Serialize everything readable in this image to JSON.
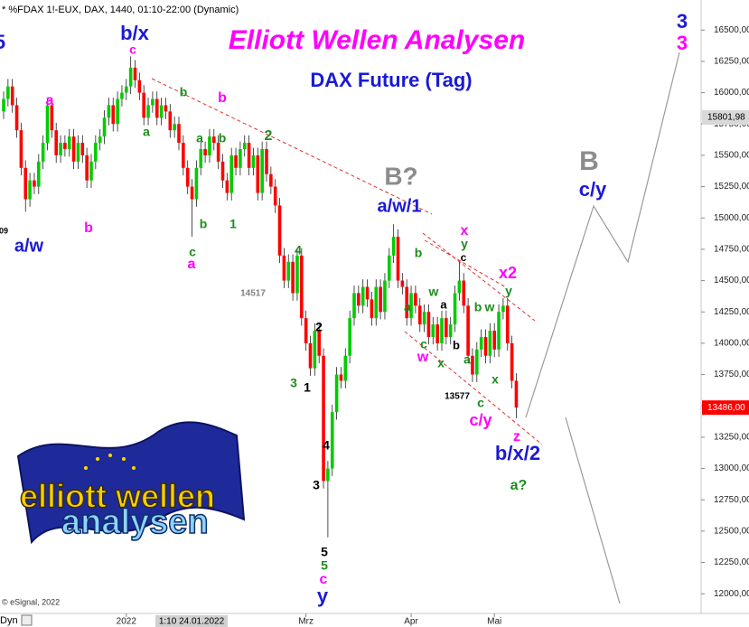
{
  "chart_data": {
    "type": "candlestick",
    "header": "* %FDAX 1!-EUX, DAX, 1440, 01:10-22:00 (Dynamic)",
    "title": "Elliott Wellen Analysen",
    "subtitle": "DAX Future (Tag)",
    "open": [
      15850,
      15950,
      16050,
      15900,
      15700,
      15400,
      15150,
      15300,
      15250,
      15450,
      15600,
      15900,
      15700,
      15500,
      15600,
      15550,
      15650,
      15450,
      15600,
      15500,
      15300,
      15450,
      15600,
      15650,
      15800,
      15900,
      15750,
      15950,
      16000,
      16050,
      16200,
      16100,
      16000,
      15800,
      15900,
      15950,
      15800,
      15900,
      15850,
      15700,
      15750,
      15600,
      15400,
      15250,
      15150,
      15400,
      15550,
      15500,
      15650,
      15600,
      15450,
      15300,
      15200,
      15500,
      15400,
      15550,
      15600,
      15400,
      15500,
      15200,
      15550,
      15350,
      15250,
      15100,
      14700,
      14500,
      14650,
      14400,
      14700,
      14200,
      14000,
      13800,
      14100,
      13900,
      12900,
      13000,
      13450,
      13750,
      13700,
      13900,
      14200,
      14400,
      14300,
      14450,
      14350,
      14200,
      14450,
      14250,
      14500,
      14700,
      14850,
      14500,
      14450,
      14200,
      14400,
      14300,
      14150,
      14250,
      14050,
      14150,
      14000,
      14200,
      14050,
      14150,
      14400,
      14500,
      14300,
      13900,
      13750,
      13950,
      14050,
      13900,
      14100,
      13950,
      14250,
      14300,
      14000,
      13700
    ],
    "high": [
      16010,
      16110,
      16110,
      15960,
      15760,
      15460,
      15360,
      15360,
      15510,
      15660,
      15960,
      15960,
      15760,
      15660,
      15660,
      15710,
      15710,
      15660,
      15660,
      15560,
      15510,
      15660,
      15710,
      15860,
      15960,
      15960,
      16010,
      16060,
      16110,
      16290,
      16260,
      16160,
      16060,
      15960,
      16010,
      16010,
      15960,
      15960,
      15910,
      15810,
      15810,
      15660,
      15460,
      15310,
      15460,
      15610,
      15610,
      15710,
      15710,
      15660,
      15510,
      15360,
      15560,
      15560,
      15610,
      15660,
      15660,
      15560,
      15560,
      15610,
      15610,
      15410,
      15310,
      15160,
      14760,
      14710,
      14710,
      14760,
      14760,
      14260,
      14060,
      14160,
      14160,
      13960,
      13060,
      13510,
      13810,
      13810,
      13960,
      14260,
      14460,
      14460,
      14510,
      14510,
      14410,
      14510,
      14510,
      14560,
      14760,
      14950,
      14910,
      14560,
      14510,
      14460,
      14460,
      14360,
      14310,
      14310,
      14210,
      14210,
      14260,
      14260,
      14210,
      14460,
      14650,
      14560,
      14360,
      13960,
      14010,
      14110,
      14110,
      14160,
      14160,
      14310,
      14360,
      14360,
      14060,
      13760
    ],
    "low": [
      15790,
      15890,
      15840,
      15640,
      15340,
      15050,
      15090,
      15190,
      15190,
      15390,
      15540,
      15640,
      15440,
      15440,
      15490,
      15490,
      15390,
      15390,
      15440,
      15240,
      15240,
      15390,
      15540,
      15590,
      15740,
      15690,
      15690,
      15890,
      15940,
      15990,
      16040,
      15940,
      15740,
      15740,
      15840,
      15740,
      15740,
      15790,
      15640,
      15640,
      15540,
      15340,
      15190,
      14850,
      15090,
      15340,
      15440,
      15440,
      15540,
      15390,
      15240,
      15140,
      15140,
      15340,
      15340,
      15490,
      15340,
      15340,
      15140,
      15140,
      15290,
      15190,
      15040,
      14640,
      14440,
      14440,
      14340,
      14340,
      14140,
      13940,
      13740,
      13740,
      13840,
      12840,
      12450,
      12940,
      13390,
      13640,
      13640,
      13840,
      14140,
      14240,
      14240,
      14290,
      14140,
      14140,
      14190,
      14190,
      14440,
      14640,
      14440,
      14390,
      14140,
      14140,
      14240,
      14090,
      14090,
      13990,
      13990,
      13940,
      13940,
      13990,
      13990,
      14090,
      14340,
      14240,
      13840,
      13690,
      13690,
      13890,
      13840,
      13840,
      13890,
      13890,
      14190,
      13940,
      13640,
      13400
    ],
    "close": [
      15950,
      16050,
      15900,
      15700,
      15400,
      15150,
      15300,
      15250,
      15450,
      15600,
      15900,
      15700,
      15500,
      15600,
      15550,
      15650,
      15450,
      15600,
      15500,
      15300,
      15450,
      15600,
      15650,
      15800,
      15900,
      15750,
      15950,
      16000,
      16050,
      16200,
      16100,
      16000,
      15800,
      15900,
      15950,
      15800,
      15900,
      15850,
      15700,
      15750,
      15600,
      15400,
      15250,
      15150,
      15400,
      15550,
      15500,
      15650,
      15600,
      15450,
      15300,
      15200,
      15500,
      15400,
      15550,
      15600,
      15400,
      15500,
      15200,
      15550,
      15350,
      15250,
      15100,
      14700,
      14500,
      14650,
      14400,
      14700,
      14200,
      14000,
      13800,
      14100,
      13900,
      12900,
      13000,
      13450,
      13750,
      13700,
      13900,
      14200,
      14400,
      14300,
      14450,
      14350,
      14200,
      14450,
      14250,
      14500,
      14700,
      14850,
      14500,
      14450,
      14200,
      14400,
      14300,
      14150,
      14250,
      14050,
      14150,
      14000,
      14200,
      14050,
      14150,
      14400,
      14500,
      14300,
      13900,
      13750,
      13950,
      14050,
      13900,
      14100,
      13950,
      14250,
      14300,
      14000,
      13700,
      13486
    ],
    "up_color": "#00cc00",
    "down_color": "#ff0000",
    "ylim": [
      11850,
      16740
    ],
    "yticks": [
      {
        "value": 12000,
        "label": "12000,00"
      },
      {
        "value": 12250,
        "label": "12250,00"
      },
      {
        "value": 12500,
        "label": "12500,00"
      },
      {
        "value": 12750,
        "label": "12750,00"
      },
      {
        "value": 13000,
        "label": "13000,00"
      },
      {
        "value": 13250,
        "label": "13250,00"
      },
      {
        "value": 13500,
        "label": "13500,00"
      },
      {
        "value": 13750,
        "label": "13750,00"
      },
      {
        "value": 14000,
        "label": "14000,00"
      },
      {
        "value": 14250,
        "label": "14250,00"
      },
      {
        "value": 14500,
        "label": "14500,00"
      },
      {
        "value": 14750,
        "label": "14750,00"
      },
      {
        "value": 15000,
        "label": "15000,00"
      },
      {
        "value": 15250,
        "label": "15250,00"
      },
      {
        "value": 15500,
        "label": "15500,00"
      },
      {
        "value": 15750,
        "label": "15750,00"
      },
      {
        "value": 16000,
        "label": "16000,00"
      },
      {
        "value": 16250,
        "label": "16250,00"
      },
      {
        "value": 16500,
        "label": "16500,00"
      }
    ],
    "xticks": [
      {
        "value": 28,
        "label": "2022"
      },
      {
        "value": 69,
        "label": "Mrz"
      },
      {
        "value": 93,
        "label": "Apr"
      },
      {
        "value": 112,
        "label": "Mai"
      }
    ],
    "crosshair_label": "1:10 24.01.2022",
    "price_markers": [
      {
        "value": 15801.98,
        "label": "15801,98",
        "color": "#d9d9d9"
      },
      {
        "value": 13486,
        "label": "13486,00",
        "color": "#ff0000"
      }
    ],
    "annotations": [
      {
        "text": "5",
        "color": "#1a1ad6"
      },
      {
        "text": "b/x",
        "color": "#1a1ad6"
      },
      {
        "text": "c",
        "color": "#ff00ff"
      },
      {
        "text": "a",
        "color": "#ff00ff"
      },
      {
        "text": "b",
        "color": "#1e8c1e"
      },
      {
        "text": "b",
        "color": "#ff00ff"
      },
      {
        "text": "a",
        "color": "#1e8c1e"
      },
      {
        "text": "a",
        "color": "#1e8c1e"
      },
      {
        "text": "b",
        "color": "#1e8c1e"
      },
      {
        "text": "2",
        "color": "#1e8c1e"
      },
      {
        "text": "09",
        "color": "#000000"
      },
      {
        "text": "a/w",
        "color": "#1a1ad6"
      },
      {
        "text": "b",
        "color": "#ff00ff"
      },
      {
        "text": "b",
        "color": "#1e8c1e"
      },
      {
        "text": "1",
        "color": "#1e8c1e"
      },
      {
        "text": "c",
        "color": "#1e8c1e"
      },
      {
        "text": "a",
        "color": "#ff00ff"
      },
      {
        "text": "4",
        "color": "#1e8c1e"
      },
      {
        "text": "14517",
        "color": "#808080"
      },
      {
        "text": "2",
        "color": "#000000"
      },
      {
        "text": "3",
        "color": "#1e8c1e"
      },
      {
        "text": "1",
        "color": "#000000"
      },
      {
        "text": "4",
        "color": "#000000"
      },
      {
        "text": "3",
        "color": "#000000"
      },
      {
        "text": "5",
        "color": "#000000"
      },
      {
        "text": "5",
        "color": "#1e8c1e"
      },
      {
        "text": "c",
        "color": "#ff00ff"
      },
      {
        "text": "y",
        "color": "#1a1ad6"
      },
      {
        "text": "B?",
        "color": "#8c8c8c"
      },
      {
        "text": "a/w/1",
        "color": "#1a1ad6"
      },
      {
        "text": "x",
        "color": "#ff00ff"
      },
      {
        "text": "y",
        "color": "#1e8c1e"
      },
      {
        "text": "c",
        "color": "#000000"
      },
      {
        "text": "b",
        "color": "#1e8c1e"
      },
      {
        "text": "x2",
        "color": "#ff00ff"
      },
      {
        "text": "y",
        "color": "#1e8c1e"
      },
      {
        "text": "w",
        "color": "#1e8c1e"
      },
      {
        "text": "a",
        "color": "#1e8c1e"
      },
      {
        "text": "a",
        "color": "#000000"
      },
      {
        "text": "b",
        "color": "#1e8c1e"
      },
      {
        "text": "w",
        "color": "#1e8c1e"
      },
      {
        "text": "c",
        "color": "#1e8c1e"
      },
      {
        "text": "w",
        "color": "#ff00ff"
      },
      {
        "text": "x",
        "color": "#1e8c1e"
      },
      {
        "text": "b",
        "color": "#000000"
      },
      {
        "text": "a",
        "color": "#1e8c1e"
      },
      {
        "text": "x",
        "color": "#1e8c1e"
      },
      {
        "text": "13577",
        "color": "#000000"
      },
      {
        "text": "c",
        "color": "#1e8c1e"
      },
      {
        "text": "c/y",
        "color": "#ff00ff"
      },
      {
        "text": "z",
        "color": "#ff00ff"
      },
      {
        "text": "b/x/2",
        "color": "#1a1ad6"
      },
      {
        "text": "a?",
        "color": "#1e8c1e"
      },
      {
        "text": "B",
        "color": "#8c8c8c"
      },
      {
        "text": "c/y",
        "color": "#1a1ad6"
      },
      {
        "text": "3",
        "color": "#1a1ad6"
      },
      {
        "text": "3",
        "color": "#ff00ff"
      }
    ],
    "logo": {
      "line1": "elliott wellen",
      "line2": "analysen"
    },
    "footer": "© eSignal, 2022",
    "footer_mode": "Dyn"
  }
}
